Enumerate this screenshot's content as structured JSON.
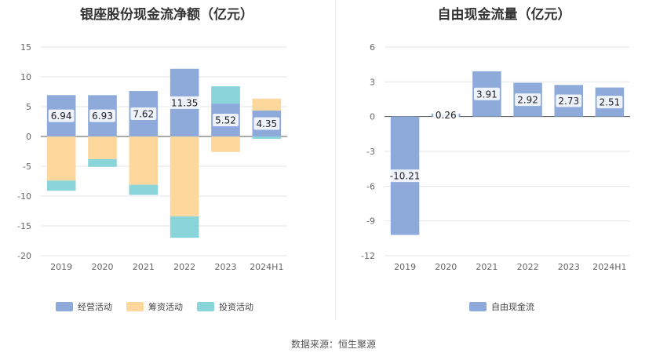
{
  "chart_data": [
    {
      "type": "bar",
      "stacked": true,
      "title": "银座股份现金流净额（亿元）",
      "categories": [
        "2019",
        "2020",
        "2021",
        "2022",
        "2023",
        "2024H1"
      ],
      "series": [
        {
          "name": "经营活动",
          "color": "#8eaadb",
          "values": [
            6.94,
            6.93,
            7.62,
            11.35,
            5.52,
            4.35
          ]
        },
        {
          "name": "筹资活动",
          "color": "#fdd79b",
          "values": [
            -7.4,
            -3.8,
            -8.1,
            -13.4,
            -2.6,
            2.0
          ]
        },
        {
          "name": "投资活动",
          "color": "#8ad5d9",
          "values": [
            -1.7,
            -1.3,
            -1.7,
            -3.6,
            2.9,
            -0.4
          ]
        }
      ],
      "data_labels": [
        "6.94",
        "6.93",
        "7.62",
        "11.35",
        "5.52",
        "4.35"
      ],
      "ylim": [
        -20,
        15
      ],
      "yticks": [
        "15",
        "10",
        "5",
        "0",
        "-5",
        "-10",
        "-15",
        "-20"
      ],
      "ytick_values": [
        15,
        10,
        5,
        0,
        -5,
        -10,
        -15,
        -20
      ],
      "legend": [
        "经营活动",
        "筹资活动",
        "投资活动"
      ],
      "legend_position": "bottom"
    },
    {
      "type": "bar",
      "title": "自由现金流量（亿元）",
      "categories": [
        "2019",
        "2020",
        "2021",
        "2022",
        "2023",
        "2024H1"
      ],
      "series": [
        {
          "name": "自由现金流",
          "color": "#8eaadb",
          "values": [
            -10.21,
            0.26,
            3.91,
            2.92,
            2.73,
            2.51
          ]
        }
      ],
      "data_labels": [
        "-10.21",
        "0.26",
        "3.91",
        "2.92",
        "2.73",
        "2.51"
      ],
      "ylim": [
        -12,
        6
      ],
      "yticks": [
        "6",
        "3",
        "0",
        "-3",
        "-6",
        "-9",
        "-12"
      ],
      "ytick_values": [
        6,
        3,
        0,
        -3,
        -6,
        -9,
        -12
      ],
      "legend": [
        "自由现金流"
      ],
      "legend_position": "bottom"
    }
  ],
  "source": "数据来源：恒生聚源"
}
